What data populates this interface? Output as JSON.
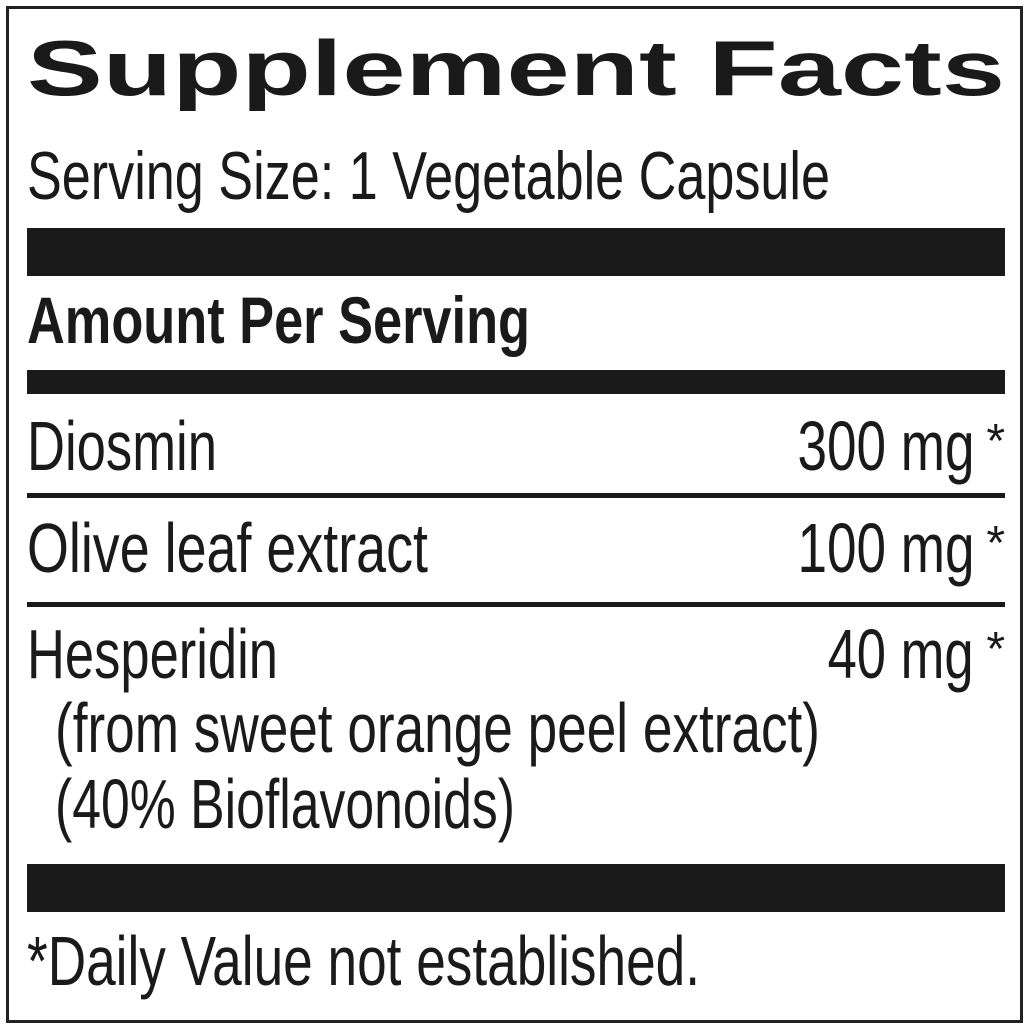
{
  "title": "Supplement Facts",
  "serving_size": "Serving Size: 1 Vegetable Capsule",
  "amount_header": "Amount Per Serving",
  "ingredients": [
    {
      "name": "Diosmin",
      "amount": "300 mg",
      "mark": "*"
    },
    {
      "name": "Olive leaf extract",
      "amount": "100 mg",
      "mark": "*"
    },
    {
      "name": "Hesperidin",
      "amount": "40 mg",
      "mark": "*",
      "notes": [
        "(from sweet orange peel extract)",
        "(40% Bioflavonoids)"
      ]
    }
  ],
  "footnote": "*Daily Value not established."
}
